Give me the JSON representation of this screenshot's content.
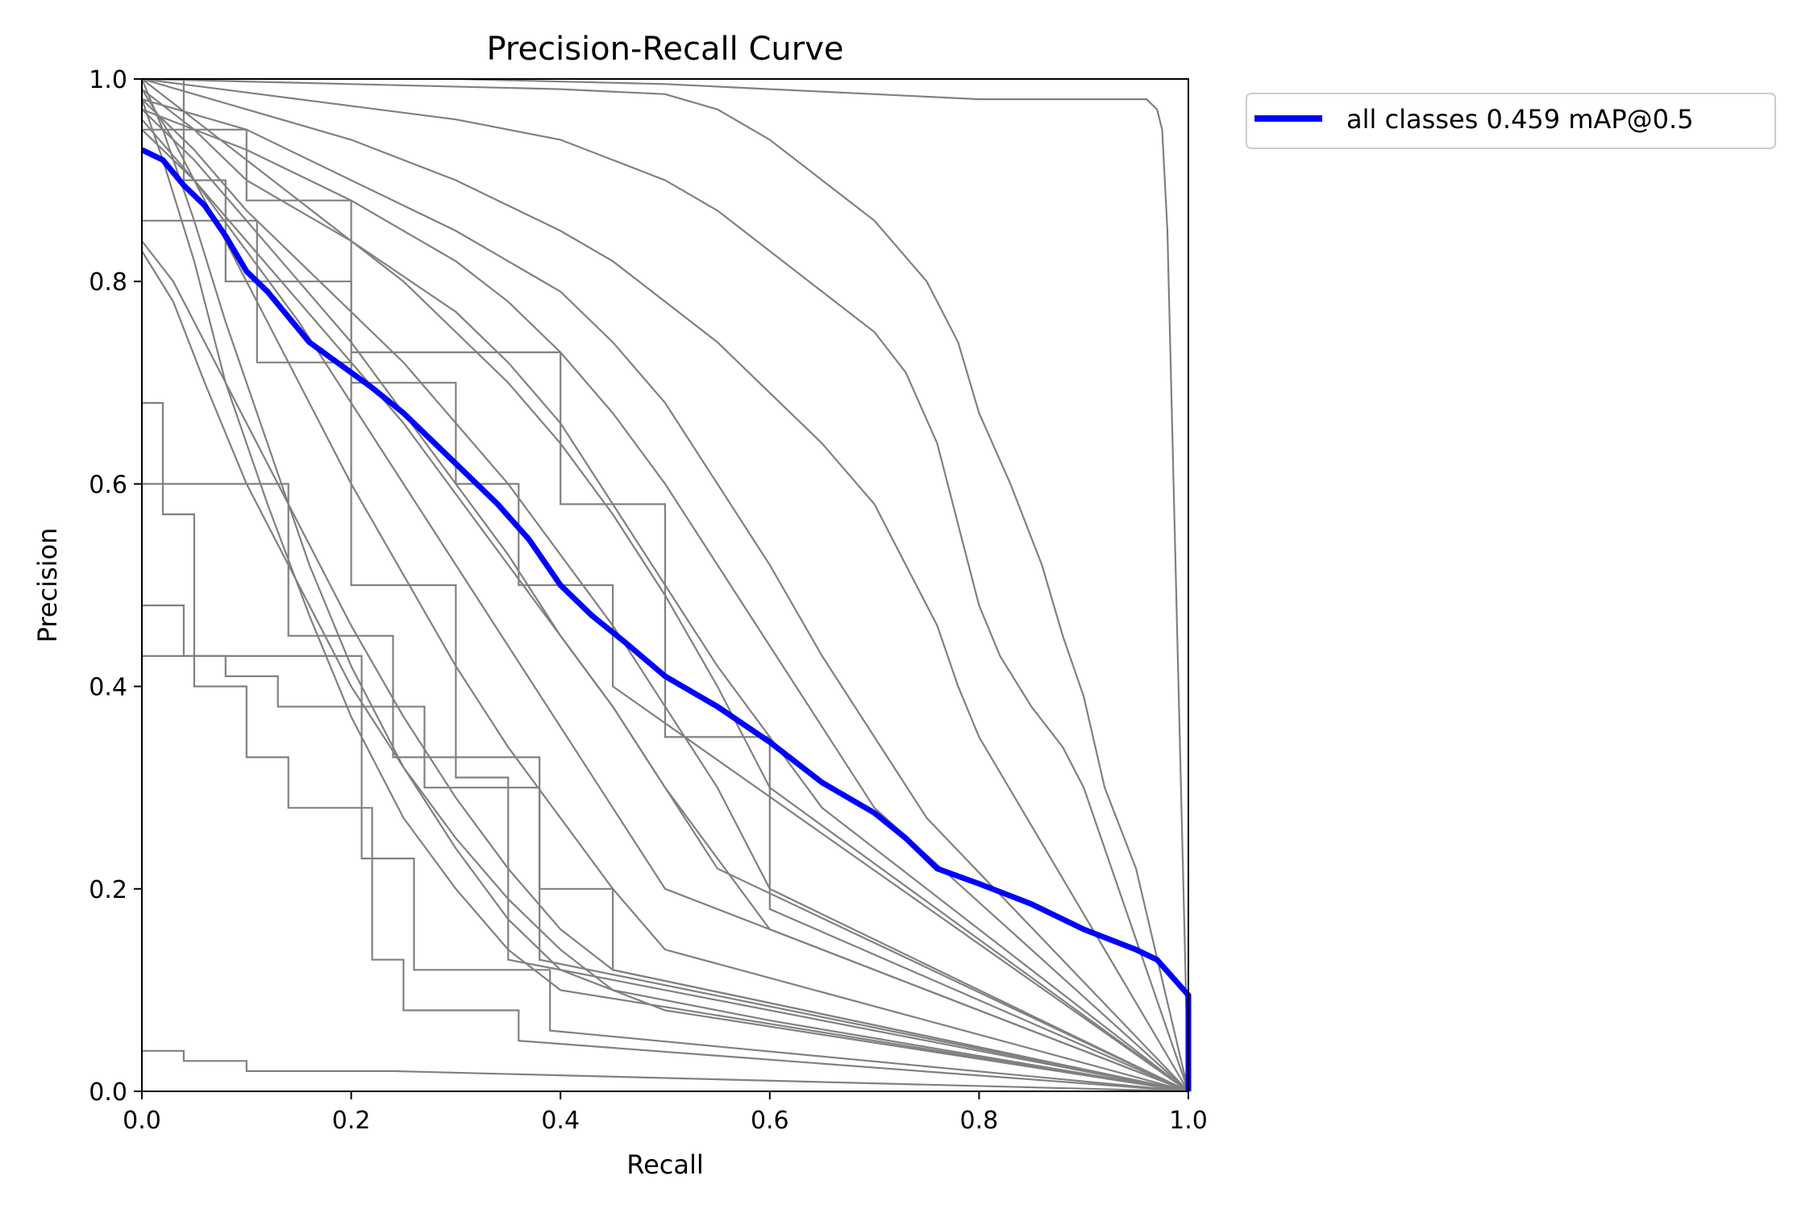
{
  "chart_data": {
    "type": "line",
    "title": "Precision-Recall Curve",
    "xlabel": "Recall",
    "ylabel": "Precision",
    "xlim": [
      0,
      1
    ],
    "ylim": [
      0,
      1
    ],
    "x_ticks": [
      "0.0",
      "0.2",
      "0.4",
      "0.6",
      "0.8",
      "1.0"
    ],
    "y_ticks": [
      "0.0",
      "0.2",
      "0.4",
      "0.6",
      "0.8",
      "1.0"
    ],
    "grid": false,
    "legend": {
      "placement": "outside-upper-right",
      "entries": [
        "all classes 0.459 mAP@0.5"
      ]
    },
    "colors": {
      "all_classes": "#0000ff",
      "per_class": "#808080"
    },
    "highlight_series": {
      "name": "all classes 0.459 mAP@0.5",
      "x": [
        0,
        0.02,
        0.04,
        0.06,
        0.08,
        0.1,
        0.12,
        0.14,
        0.16,
        0.18,
        0.2,
        0.22,
        0.25,
        0.28,
        0.31,
        0.34,
        0.37,
        0.4,
        0.43,
        0.46,
        0.5,
        0.55,
        0.6,
        0.65,
        0.7,
        0.73,
        0.76,
        0.8,
        0.85,
        0.9,
        0.95,
        0.97,
        1.0,
        1.0
      ],
      "y": [
        0.93,
        0.92,
        0.895,
        0.875,
        0.845,
        0.81,
        0.79,
        0.765,
        0.74,
        0.725,
        0.71,
        0.695,
        0.67,
        0.64,
        0.61,
        0.58,
        0.545,
        0.5,
        0.47,
        0.445,
        0.41,
        0.38,
        0.345,
        0.305,
        0.275,
        0.25,
        0.22,
        0.205,
        0.185,
        0.16,
        0.14,
        0.13,
        0.095,
        0.0
      ]
    },
    "series": [
      {
        "x": [
          0,
          0.3,
          0.5,
          0.6,
          0.7,
          0.8,
          0.9,
          0.96,
          0.97,
          0.975,
          0.98,
          1.0
        ],
        "y": [
          1.0,
          1.0,
          0.995,
          0.99,
          0.985,
          0.98,
          0.98,
          0.98,
          0.97,
          0.95,
          0.85,
          0.0
        ]
      },
      {
        "x": [
          0,
          0.2,
          0.4,
          0.5,
          0.55,
          0.6,
          0.65,
          0.7,
          0.75,
          0.78,
          0.8,
          0.83,
          0.86,
          0.88,
          0.9,
          0.92,
          0.95,
          1.0
        ],
        "y": [
          1.0,
          0.995,
          0.99,
          0.985,
          0.97,
          0.94,
          0.9,
          0.86,
          0.8,
          0.74,
          0.67,
          0.6,
          0.52,
          0.45,
          0.39,
          0.3,
          0.22,
          0.0
        ]
      },
      {
        "x": [
          0,
          0.15,
          0.3,
          0.4,
          0.5,
          0.55,
          0.6,
          0.65,
          0.7,
          0.73,
          0.76,
          0.78,
          0.8,
          0.82,
          0.85,
          0.88,
          0.9,
          1.0
        ],
        "y": [
          1.0,
          0.98,
          0.96,
          0.94,
          0.9,
          0.87,
          0.83,
          0.79,
          0.75,
          0.71,
          0.64,
          0.56,
          0.48,
          0.43,
          0.38,
          0.34,
          0.3,
          0.0
        ]
      },
      {
        "x": [
          0,
          0.1,
          0.2,
          0.3,
          0.4,
          0.45,
          0.5,
          0.55,
          0.6,
          0.65,
          0.7,
          0.73,
          0.76,
          0.78,
          0.8,
          1.0
        ],
        "y": [
          1.0,
          0.97,
          0.94,
          0.9,
          0.85,
          0.82,
          0.78,
          0.74,
          0.69,
          0.64,
          0.58,
          0.52,
          0.46,
          0.4,
          0.35,
          0.0
        ]
      },
      {
        "x": [
          0,
          0.1,
          0.2,
          0.3,
          0.4,
          0.45,
          0.5,
          0.55,
          0.6,
          0.65,
          0.7,
          0.75,
          1.0
        ],
        "y": [
          0.98,
          0.95,
          0.9,
          0.85,
          0.79,
          0.74,
          0.68,
          0.6,
          0.52,
          0.43,
          0.35,
          0.27,
          0.0
        ]
      },
      {
        "x": [
          0,
          0.1,
          0.2,
          0.3,
          0.35,
          0.4,
          0.45,
          0.5,
          0.55,
          0.6,
          0.65,
          0.7,
          1.0
        ],
        "y": [
          0.97,
          0.93,
          0.88,
          0.82,
          0.78,
          0.73,
          0.67,
          0.6,
          0.52,
          0.44,
          0.36,
          0.28,
          0.0
        ]
      },
      {
        "x": [
          0,
          0.05,
          0.1,
          0.2,
          0.3,
          0.35,
          0.4,
          0.45,
          0.5,
          0.55,
          0.6,
          0.65,
          1.0
        ],
        "y": [
          0.99,
          0.95,
          0.9,
          0.84,
          0.77,
          0.72,
          0.66,
          0.58,
          0.5,
          0.42,
          0.35,
          0.28,
          0.0
        ]
      },
      {
        "x": [
          0,
          0.05,
          0.1,
          0.15,
          0.2,
          0.25,
          0.3,
          0.35,
          0.4,
          0.45,
          0.5,
          0.55,
          0.6,
          1.0
        ],
        "y": [
          0.98,
          0.93,
          0.87,
          0.82,
          0.77,
          0.72,
          0.66,
          0.6,
          0.53,
          0.46,
          0.38,
          0.3,
          0.2,
          0.0
        ]
      },
      {
        "x": [
          0,
          0.05,
          0.1,
          0.15,
          0.2,
          0.25,
          0.3,
          0.35,
          0.4,
          0.45,
          0.5,
          0.55,
          1.0
        ],
        "y": [
          0.95,
          0.9,
          0.84,
          0.78,
          0.72,
          0.66,
          0.59,
          0.52,
          0.45,
          0.38,
          0.3,
          0.22,
          0.0
        ]
      },
      {
        "x": [
          0,
          0.05,
          0.1,
          0.15,
          0.2,
          0.25,
          0.3,
          0.35,
          0.4,
          0.45,
          0.5,
          1.0
        ],
        "y": [
          0.96,
          0.9,
          0.83,
          0.76,
          0.68,
          0.6,
          0.52,
          0.44,
          0.36,
          0.28,
          0.2,
          0.0
        ]
      },
      {
        "x": [
          0,
          0.03,
          0.06,
          0.1,
          0.15,
          0.2,
          0.25,
          0.3,
          0.35,
          0.4,
          0.45,
          0.5,
          1.0
        ],
        "y": [
          0.99,
          0.94,
          0.88,
          0.8,
          0.7,
          0.6,
          0.51,
          0.42,
          0.34,
          0.27,
          0.2,
          0.14,
          0.0
        ]
      },
      {
        "x": [
          0,
          0.03,
          0.06,
          0.1,
          0.15,
          0.2,
          0.25,
          0.3,
          0.35,
          0.4,
          0.45,
          1.0
        ],
        "y": [
          0.84,
          0.8,
          0.74,
          0.66,
          0.56,
          0.46,
          0.37,
          0.29,
          0.22,
          0.16,
          0.12,
          0.0
        ]
      },
      {
        "x": [
          0,
          0.03,
          0.06,
          0.1,
          0.15,
          0.2,
          0.25,
          0.3,
          0.35,
          0.4,
          0.45,
          0.6,
          1.0
        ],
        "y": [
          0.83,
          0.78,
          0.7,
          0.6,
          0.5,
          0.4,
          0.32,
          0.25,
          0.19,
          0.14,
          0.1,
          0.07,
          0.0
        ]
      },
      {
        "x": [
          0,
          0.02,
          0.05,
          0.08,
          0.12,
          0.16,
          0.2,
          0.25,
          0.3,
          0.35,
          0.4,
          0.5,
          1.0
        ],
        "y": [
          1.0,
          0.95,
          0.86,
          0.76,
          0.64,
          0.52,
          0.42,
          0.32,
          0.24,
          0.17,
          0.12,
          0.08,
          0.0
        ]
      },
      {
        "x": [
          0,
          0.02,
          0.05,
          0.08,
          0.12,
          0.16,
          0.2,
          0.25,
          0.3,
          0.35,
          0.4,
          1.0
        ],
        "y": [
          0.98,
          0.92,
          0.82,
          0.7,
          0.58,
          0.47,
          0.37,
          0.27,
          0.2,
          0.14,
          0.1,
          0.0
        ]
      },
      {
        "x": [
          0,
          0.05,
          0.1,
          0.15,
          0.2,
          0.25,
          0.3,
          0.35,
          0.4,
          0.45,
          0.5,
          0.6,
          1.0
        ],
        "y": [
          0.97,
          0.92,
          0.86,
          0.8,
          0.74,
          0.67,
          0.6,
          0.53,
          0.45,
          0.38,
          0.3,
          0.16,
          0.0
        ]
      },
      {
        "x": [
          0,
          0.05,
          0.1,
          0.15,
          0.2,
          0.25,
          0.3,
          0.35,
          0.4,
          0.45,
          0.5,
          0.55,
          0.6,
          1.0
        ],
        "y": [
          1.0,
          0.96,
          0.92,
          0.88,
          0.84,
          0.8,
          0.75,
          0.7,
          0.64,
          0.57,
          0.49,
          0.4,
          0.3,
          0.0
        ]
      },
      {
        "x": [
          0,
          0.04,
          0.04,
          0.08,
          0.08,
          0.2,
          0.2,
          0.3,
          0.3,
          0.36,
          0.36,
          0.45,
          0.45,
          1.0
        ],
        "y": [
          1.0,
          1.0,
          0.9,
          0.9,
          0.8,
          0.8,
          0.7,
          0.7,
          0.6,
          0.6,
          0.5,
          0.5,
          0.4,
          0.0
        ]
      },
      {
        "x": [
          0,
          0.1,
          0.1,
          0.2,
          0.2,
          0.4,
          0.4,
          0.5,
          0.5,
          0.6,
          0.6,
          1.0
        ],
        "y": [
          0.95,
          0.95,
          0.88,
          0.88,
          0.73,
          0.73,
          0.58,
          0.58,
          0.35,
          0.35,
          0.18,
          0.0
        ]
      },
      {
        "x": [
          0,
          0.03,
          0.03,
          0.14,
          0.14,
          0.24,
          0.24,
          0.38,
          0.38,
          0.45,
          0.45,
          1.0
        ],
        "y": [
          0.6,
          0.6,
          0.6,
          0.6,
          0.45,
          0.45,
          0.33,
          0.33,
          0.2,
          0.2,
          0.12,
          0.0
        ]
      },
      {
        "x": [
          0,
          0.04,
          0.04,
          0.08,
          0.08,
          0.13,
          0.13,
          0.27,
          0.27,
          0.38,
          0.38,
          1.0
        ],
        "y": [
          0.48,
          0.48,
          0.43,
          0.43,
          0.41,
          0.41,
          0.38,
          0.38,
          0.3,
          0.3,
          0.13,
          0.0
        ]
      },
      {
        "x": [
          0,
          0.1,
          0.1,
          0.21,
          0.21,
          0.26,
          0.26,
          0.39,
          0.39,
          1.0
        ],
        "y": [
          0.43,
          0.43,
          0.43,
          0.43,
          0.23,
          0.23,
          0.12,
          0.12,
          0.06,
          0.0
        ]
      },
      {
        "x": [
          0,
          0.02,
          0.02,
          0.05,
          0.05,
          0.1,
          0.1,
          0.14,
          0.14,
          0.22,
          0.22,
          0.25,
          0.25,
          0.36,
          0.36,
          1.0
        ],
        "y": [
          0.68,
          0.68,
          0.57,
          0.57,
          0.4,
          0.4,
          0.33,
          0.33,
          0.28,
          0.28,
          0.13,
          0.13,
          0.08,
          0.08,
          0.05,
          0.0
        ]
      },
      {
        "x": [
          0,
          0.11,
          0.11,
          0.2,
          0.2,
          0.3,
          0.3,
          0.35,
          0.35,
          1.0
        ],
        "y": [
          0.86,
          0.86,
          0.72,
          0.72,
          0.5,
          0.5,
          0.31,
          0.31,
          0.13,
          0.0
        ]
      },
      {
        "x": [
          0,
          0.04,
          0.04,
          0.1,
          0.1,
          0.16,
          0.16,
          0.24,
          0.24,
          1.0
        ],
        "y": [
          0.04,
          0.04,
          0.03,
          0.03,
          0.02,
          0.02,
          0.02,
          0.02,
          0.02,
          0.0
        ]
      }
    ]
  }
}
